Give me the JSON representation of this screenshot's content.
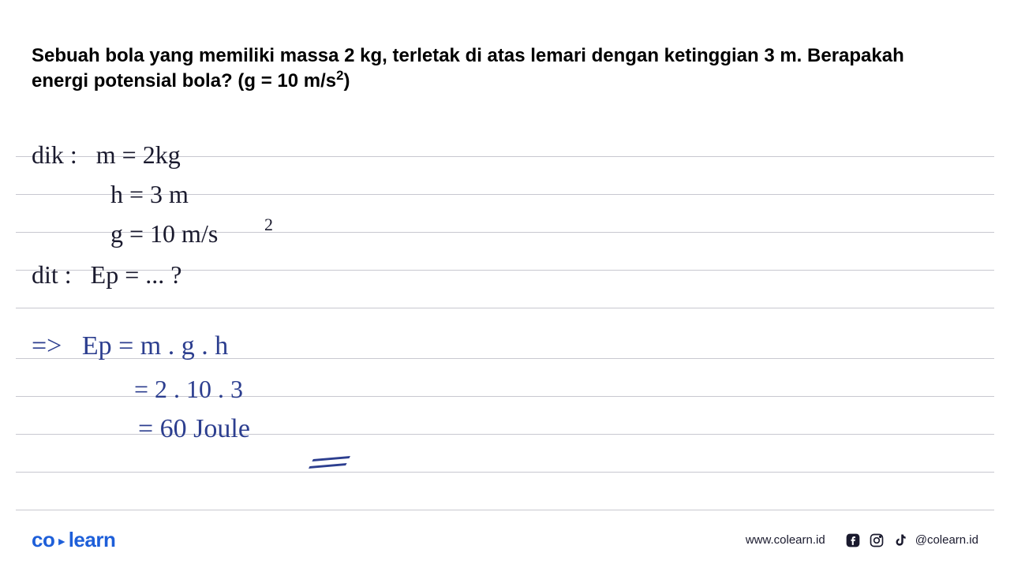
{
  "question": {
    "line1": "Sebuah bola yang memiliki massa 2 kg, terletak di atas lemari dengan ketinggian 3 m. Berapakah",
    "line2_prefix": "energi potensial bola? (g = 10 m/s",
    "line2_sup": "2",
    "line2_suffix": ")"
  },
  "handwriting": {
    "dik_label": "dik :",
    "mass": "m =  2kg",
    "height": "h  =  3 m",
    "gravity": "g  =  10  m/s",
    "gravity_sup": "2",
    "dit_label": "dit  :",
    "dit_value": "Ep  =  ...  ?",
    "arrow": "=>",
    "formula": "Ep  =  m . g . h",
    "calc": "=  2 .  10 .   3",
    "result": "=   60  Joule"
  },
  "paper": {
    "line_positions": [
      198,
      246,
      294,
      342,
      390,
      454,
      502,
      550,
      598,
      646
    ],
    "line_color": "#c8c8d0"
  },
  "colors": {
    "ink_black": "#1a1a2e",
    "ink_blue": "#2c3e8f",
    "brand_blue": "#1e5fd9",
    "background": "#ffffff"
  },
  "footer": {
    "logo_part1": "co",
    "logo_part2": "learn",
    "website": "www.colearn.id",
    "handle": "@colearn.id"
  }
}
